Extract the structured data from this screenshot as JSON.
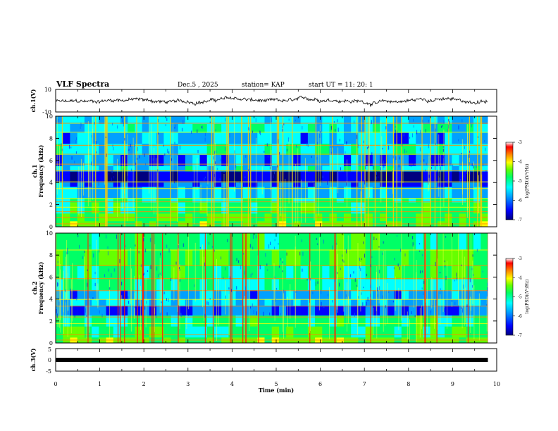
{
  "chart_data": {
    "type": "heatmap",
    "title": "VLF Spectra",
    "header": {
      "date": "Dec.5 , 2025",
      "station": "station= KAP",
      "start": "start UT = 11: 20: 1"
    },
    "xlabel": "Time (min)",
    "xlim": [
      0,
      10
    ],
    "xticks": [
      "0",
      "1",
      "2",
      "3",
      "4",
      "5",
      "6",
      "7",
      "8",
      "9",
      "10"
    ],
    "data_end_min": 9.8,
    "panels": {
      "ch1_waveform": {
        "ylabel": "ch.1(V)",
        "ylim": [
          -10,
          10
        ],
        "yticks": [
          "10",
          "-10"
        ],
        "amplitude_v": 5
      },
      "ch1_spectrum": {
        "ylabel_top": "ch.1",
        "ylabel": "Frequency (kHz)",
        "ylim": [
          0,
          10
        ],
        "yticks": [
          "0",
          "2",
          "4",
          "6",
          "8",
          "10"
        ],
        "colorbar": {
          "label": "log(PSD)(V²/Hz)",
          "range": [
            -7,
            -3
          ],
          "ticks": [
            "-3",
            "-4",
            "-5",
            "-6",
            "-7"
          ]
        }
      },
      "ch2_spectrum": {
        "ylabel_top": "ch.2",
        "ylabel": "Frequency (kHz)",
        "ylim": [
          0,
          10
        ],
        "yticks": [
          "0",
          "2",
          "4",
          "6",
          "8",
          "10"
        ],
        "colorbar": {
          "label": "log(PSD)(V²/Hz)",
          "range": [
            -7,
            -3
          ],
          "ticks": [
            "-3",
            "-4",
            "-5",
            "-6",
            "-7"
          ]
        }
      },
      "ch3_waveform": {
        "ylabel": "ch.3(V)",
        "ylim": [
          -5,
          5
        ],
        "yticks": [
          "5",
          "0",
          "-5"
        ],
        "level_v": 0
      }
    }
  },
  "colors": {
    "colormap": [
      "#00007f",
      "#0000ff",
      "#00a0ff",
      "#00ffff",
      "#00ff66",
      "#66ff00",
      "#ffff00",
      "#ff8800",
      "#ff0000",
      "#ffffff"
    ]
  }
}
